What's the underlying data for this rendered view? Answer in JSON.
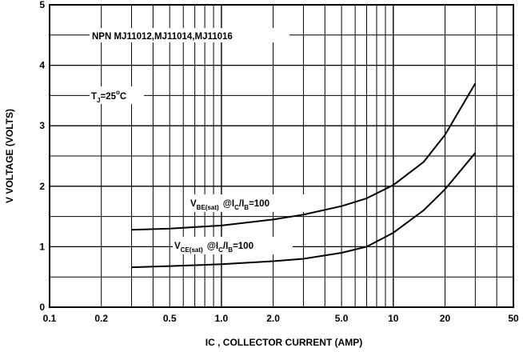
{
  "chart_data": {
    "type": "line",
    "x_scale": "log",
    "xlim": [
      0.1,
      50
    ],
    "ylim": [
      0,
      5
    ],
    "grid": true,
    "xlabel": "IC , COLLECTOR CURRENT (AMP)",
    "ylabel": "V VOLTAGE (VOLTS)",
    "x_ticks": [
      "0.1",
      "0.2",
      "0.5",
      "1.0",
      "2.0",
      "5.0",
      "10",
      "20",
      "50"
    ],
    "y_ticks": [
      "0",
      "1",
      "2",
      "3",
      "4",
      "5"
    ],
    "annotations": {
      "device": "NPN MJ11012,MJ11014,MJ11016",
      "temp_main": "T",
      "temp_sub": "J",
      "temp_rest": "=25",
      "temp_deg": "o",
      "temp_unit": "C"
    },
    "series": [
      {
        "label_main": "V",
        "label_sub": "BE(sat)",
        "label_cond": "@I",
        "label_sub2": "C",
        "label_sep": "/I",
        "label_sub3": "B",
        "label_tail": "=100",
        "x": [
          0.3,
          0.5,
          1.0,
          2.0,
          3.0,
          5.0,
          7.0,
          10,
          15,
          20,
          30
        ],
        "y": [
          1.28,
          1.3,
          1.35,
          1.45,
          1.53,
          1.67,
          1.8,
          2.02,
          2.4,
          2.85,
          3.7
        ]
      },
      {
        "label_main": "V",
        "label_sub": "CE(sat)",
        "label_cond": "@I",
        "label_sub2": "C",
        "label_sep": "/I",
        "label_sub3": "B",
        "label_tail": "=100",
        "x": [
          0.3,
          0.5,
          1.0,
          2.0,
          3.0,
          5.0,
          7.0,
          10,
          15,
          20,
          30
        ],
        "y": [
          0.66,
          0.68,
          0.71,
          0.76,
          0.8,
          0.9,
          1.0,
          1.23,
          1.6,
          1.95,
          2.55
        ]
      }
    ]
  }
}
